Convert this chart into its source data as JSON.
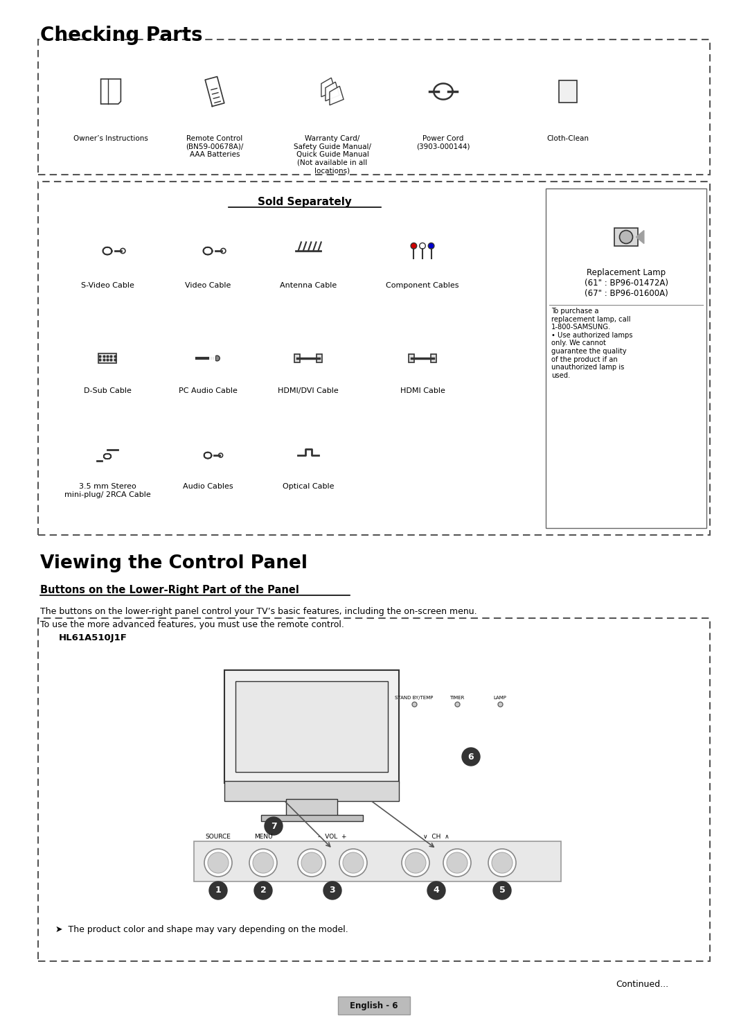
{
  "title_checking": "Checking Parts",
  "title_viewing": "Viewing the Control Panel",
  "subtitle_buttons": "Buttons on the Lower-Right Part of the Panel",
  "desc_buttons1": "The buttons on the lower-right panel control your TV’s basic features, including the on-screen menu.",
  "desc_buttons2": "To use the more advanced features, you must use the remote control.",
  "model_label": "HL61A510J1F",
  "note_text": "➤  The product color and shape may vary depending on the model.",
  "continued": "Continued...",
  "english_6": "English - 6",
  "sold_separately": "Sold Separately",
  "parts_row1": [
    "Owner’s Instructions",
    "Remote Control\n(BN59-00678A)/\nAAA Batteries",
    "Warranty Card/\nSafety Guide Manual/\nQuick Guide Manual\n(Not available in all\nlocations)",
    "Power Cord\n(3903-000144)",
    "Cloth-Clean"
  ],
  "sold_row1": [
    "S-Video Cable",
    "Video Cable",
    "Antenna Cable",
    "Component Cables"
  ],
  "sold_row2": [
    "D-Sub Cable",
    "PC Audio Cable",
    "HDMI/DVI Cable",
    "HDMI Cable"
  ],
  "sold_row3": [
    "3.5 mm Stereo\nmini-plug/ 2RCA Cable",
    "Audio Cables",
    "Optical Cable"
  ],
  "lamp_title": "Replacement Lamp\n(61\" : BP96-01472A)\n(67\" : BP96-01600A)",
  "lamp_note": "To purchase a\nreplacement lamp, call\n1-800-SAMSUNG.\n• Use authorized lamps\nonly. We cannot\nguarantee the quality\nof the product if an\nunauthorized lamp is\nused.",
  "button_labels": [
    "SOURCE",
    "MENU",
    "–  VOL  +",
    "∨  CH  ∧",
    ""
  ],
  "button_numbers": [
    "1",
    "2",
    "3",
    "4",
    "5"
  ],
  "indicator_labels": [
    "STAND BY/TEMP",
    "TIMER",
    "LAMP"
  ],
  "bg_color": "#ffffff",
  "border_color": "#000000",
  "dash_color": "#555555",
  "text_color": "#000000",
  "light_gray": "#cccccc",
  "mid_gray": "#888888"
}
